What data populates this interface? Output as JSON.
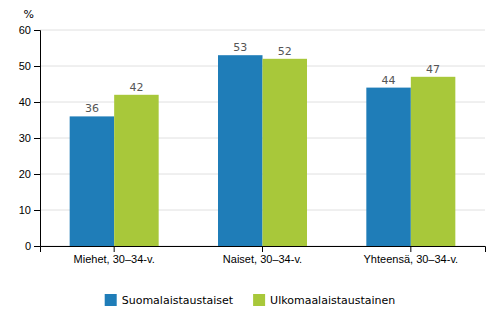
{
  "chart_data": {
    "type": "bar",
    "categories": [
      "Miehet, 30–34-v.",
      "Naiset, 30–34-v.",
      "Yhteensä, 30–34-v."
    ],
    "series": [
      {
        "name": "Suomalaistaustaiset",
        "color": "#1f7db8",
        "values": [
          36,
          53,
          44
        ]
      },
      {
        "name": "Ulkomaalaistaustainen",
        "color": "#a8c83a",
        "values": [
          42,
          52,
          47
        ]
      }
    ],
    "ylabel": "%",
    "ylim": [
      0,
      60
    ],
    "yticks": [
      0,
      10,
      20,
      30,
      40,
      50,
      60
    ],
    "grid": true,
    "data_labels": true,
    "legend": "bottom"
  }
}
